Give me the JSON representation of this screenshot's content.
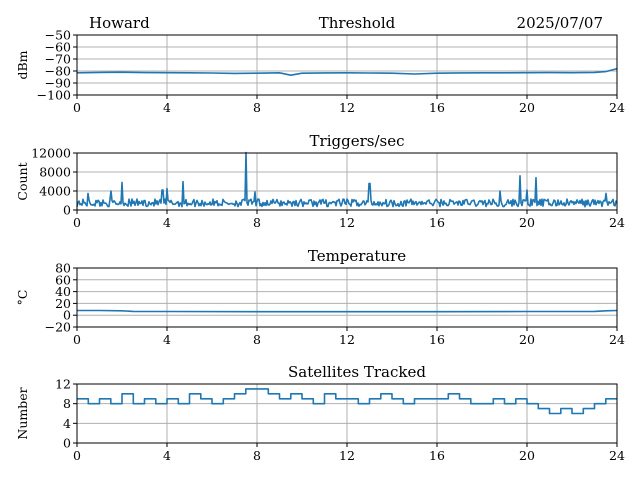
{
  "header": {
    "station": "Howard",
    "date": "2025/07/07"
  },
  "chart_data": [
    {
      "type": "line",
      "title": "Threshold",
      "ylabel": "dBm",
      "xlim": [
        0,
        24
      ],
      "ylim": [
        -100,
        -50
      ],
      "xticks": [
        0,
        4,
        8,
        12,
        16,
        20,
        24
      ],
      "yticks": [
        -100,
        -90,
        -80,
        -70,
        -60,
        -50
      ],
      "ytick_labels": [
        "−100",
        "−90",
        "−80",
        "−70",
        "−60",
        "−50"
      ],
      "grid": true,
      "color": "#1f77b4",
      "series": [
        {
          "x": [
            0,
            1,
            2,
            3,
            4,
            5,
            6,
            7,
            8,
            9,
            9.5,
            10,
            11,
            12,
            13,
            14,
            15,
            16,
            17,
            18,
            19,
            20,
            21,
            22,
            23,
            23.5,
            24
          ],
          "y": [
            -81.5,
            -81.2,
            -81,
            -81.3,
            -81.4,
            -81.5,
            -81.7,
            -82,
            -81.8,
            -81.5,
            -83.5,
            -81.8,
            -81.6,
            -81.5,
            -81.7,
            -81.8,
            -82.5,
            -81.8,
            -81.6,
            -81.5,
            -81.5,
            -81.4,
            -81.3,
            -81.4,
            -81.2,
            -80.5,
            -78
          ]
        }
      ]
    },
    {
      "type": "line",
      "title": "Triggers/sec",
      "ylabel": "Count",
      "xlim": [
        0,
        24
      ],
      "ylim": [
        0,
        12000
      ],
      "xticks": [
        0,
        4,
        8,
        12,
        16,
        20,
        24
      ],
      "yticks": [
        0,
        4000,
        8000,
        12000
      ],
      "ytick_labels": [
        "0",
        "4000",
        "8000",
        "12000"
      ],
      "grid": true,
      "color": "#1f77b4",
      "baseline": 1500,
      "noise_amplitude": 1600,
      "series": [
        {
          "name": "spikes",
          "x": [
            0.5,
            1.5,
            2.0,
            3.8,
            4.0,
            4.7,
            7.5,
            7.9,
            13.0,
            18.8,
            19.7,
            20.0,
            20.4,
            23.5
          ],
          "y": [
            3500,
            4000,
            5800,
            4200,
            4500,
            6000,
            12100,
            3800,
            5600,
            4000,
            7200,
            4200,
            6800,
            3500
          ]
        }
      ]
    },
    {
      "type": "line",
      "title": "Temperature",
      "ylabel": "°C",
      "xlim": [
        0,
        24
      ],
      "ylim": [
        -20,
        80
      ],
      "xticks": [
        0,
        4,
        8,
        12,
        16,
        20,
        24
      ],
      "yticks": [
        -20,
        0,
        20,
        40,
        60,
        80
      ],
      "ytick_labels": [
        "−20",
        "0",
        "20",
        "40",
        "60",
        "80"
      ],
      "grid": true,
      "color": "#1f77b4",
      "series": [
        {
          "x": [
            0,
            1,
            2,
            2.5,
            4,
            8,
            12,
            16,
            20,
            23,
            23.5,
            24
          ],
          "y": [
            8,
            8,
            7.5,
            6.5,
            6.2,
            6,
            6,
            6,
            6.2,
            6.5,
            7.5,
            8
          ]
        }
      ]
    },
    {
      "type": "line",
      "title": "Satellites Tracked",
      "ylabel": "Number",
      "xlim": [
        0,
        24
      ],
      "ylim": [
        0,
        12
      ],
      "xticks": [
        0,
        4,
        8,
        12,
        16,
        20,
        24
      ],
      "yticks": [
        0,
        4,
        8,
        12
      ],
      "ytick_labels": [
        "0",
        "4",
        "8",
        "12"
      ],
      "grid": true,
      "color": "#1f77b4",
      "series": [
        {
          "x": [
            0,
            0.5,
            1,
            1.5,
            2,
            2.5,
            3,
            3.5,
            4,
            4.5,
            5,
            5.5,
            6,
            6.5,
            7,
            7.5,
            8,
            8.5,
            9,
            9.5,
            10,
            10.5,
            11,
            11.5,
            12,
            12.5,
            13,
            13.5,
            14,
            14.5,
            15,
            15.5,
            16,
            16.5,
            17,
            17.5,
            18,
            18.5,
            19,
            19.5,
            20,
            20.5,
            21,
            21.5,
            22,
            22.5,
            23,
            23.5,
            24
          ],
          "y": [
            9,
            8,
            9,
            8,
            10,
            8,
            9,
            8,
            9,
            8,
            10,
            9,
            8,
            9,
            10,
            11,
            11,
            10,
            9,
            10,
            9,
            8,
            10,
            9,
            9,
            8,
            9,
            10,
            9,
            8,
            9,
            9,
            9,
            10,
            9,
            8,
            8,
            9,
            8,
            9,
            8,
            7,
            6,
            7,
            6,
            7,
            8,
            9,
            9
          ]
        }
      ]
    }
  ]
}
